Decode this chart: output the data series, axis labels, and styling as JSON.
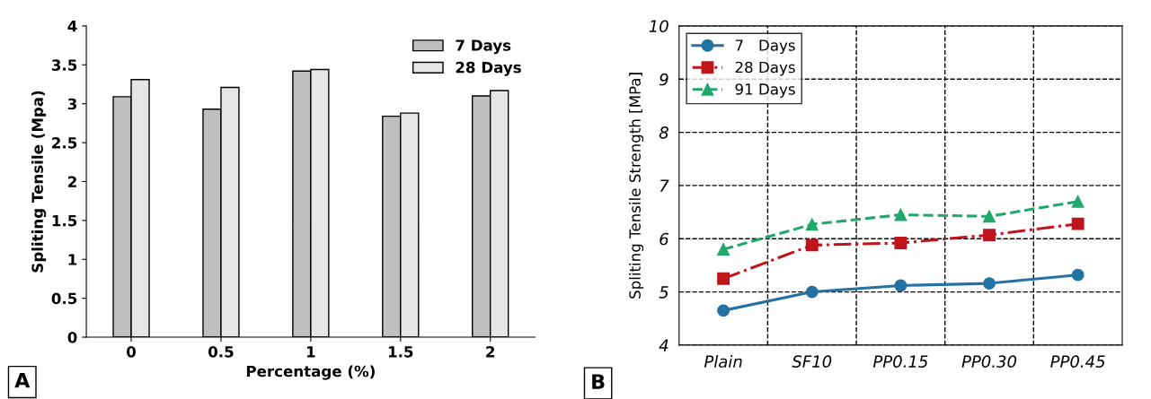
{
  "chart_data": [
    {
      "type": "bar",
      "categories": [
        "0",
        "0.5",
        "1",
        "1.5",
        "2"
      ],
      "xlabel": "Percentage (%)",
      "ylabel": "Spliting Tensile (Mpa)",
      "series": [
        {
          "name": "7 Days",
          "color": "#bfbfbf",
          "values": [
            3.09,
            2.93,
            3.42,
            2.84,
            3.1
          ]
        },
        {
          "name": "28 Days",
          "color": "#e6e6e6",
          "values": [
            3.31,
            3.21,
            3.44,
            2.88,
            3.17
          ]
        }
      ],
      "ylim": [
        0,
        4
      ],
      "yticks": [
        0,
        0.5,
        1,
        1.5,
        2,
        2.5,
        3,
        3.5,
        4
      ],
      "grid": false,
      "legend": "top right",
      "annotations": [
        "A"
      ]
    },
    {
      "type": "line",
      "categories": [
        "Plain",
        "SF10",
        "PP0.15",
        "PP0.30",
        "PP0.45"
      ],
      "ylabel": "Spliting Tensile Strength [MPa]",
      "series": [
        {
          "name": "7   Days",
          "color": "#2471a3",
          "marker": "circle",
          "line_style": "solid",
          "values": [
            4.65,
            5.0,
            5.12,
            5.16,
            5.32
          ]
        },
        {
          "name": "28 Days",
          "color": "#c0141c",
          "marker": "square",
          "line_style": "dashdot",
          "values": [
            5.25,
            5.88,
            5.92,
            6.07,
            6.28
          ]
        },
        {
          "name": "91 Days",
          "color": "#1fa86a",
          "marker": "triangle",
          "line_style": "dashed",
          "values": [
            5.8,
            6.27,
            6.45,
            6.42,
            6.7
          ]
        }
      ],
      "ylim": [
        4,
        10
      ],
      "yticks": [
        4,
        5,
        6,
        7,
        8,
        9,
        10
      ],
      "grid": true,
      "legend": "top left",
      "annotations": [
        "B"
      ]
    }
  ]
}
